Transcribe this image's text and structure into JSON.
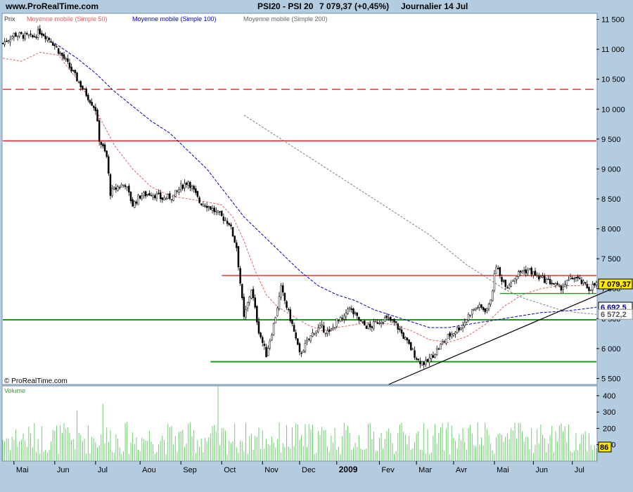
{
  "header": {
    "site": "www.ProRealTime.com",
    "instrument": "PSI20 - PSI 20",
    "last": "7 079,37 (+0,45%)",
    "period": "Journalier  14 Jul"
  },
  "legend": {
    "prix": "Prix",
    "ma50": "Moyenne mobile (Simple 50)",
    "ma100": "Moyenne mobile (Simple 100)",
    "ma200": "Moyenne mobile (Simple 200)",
    "copyright": "© ProRealTime.com",
    "volume": "Volume"
  },
  "colors": {
    "background": "#b4cce0",
    "panel": "#ffffff",
    "ma50": "#e06060",
    "ma100": "#0000c0",
    "ma200": "#808080",
    "volume": "#6fce6f",
    "resistance": "#e01010",
    "support": "#10a010",
    "tag_price": "#ffe800",
    "tag_blue": "#0000a0"
  },
  "chart_data": [
    {
      "type": "candlestick",
      "title": "PSI20 - PSI 20",
      "period": "Journalier",
      "y_ticks": [
        "11 500",
        "11 000",
        "10 500",
        "10 000",
        "9 500",
        "9 000",
        "8 500",
        "8 000",
        "7 500",
        "7 000",
        "6 500",
        "6 000",
        "5 500"
      ],
      "ylim": [
        5400,
        11600
      ],
      "x_ticks": [
        "Mai",
        "Jun",
        "Jul",
        "Aou",
        "Sep",
        "Oct",
        "Nov",
        "Dec",
        "2009",
        "Fev",
        "Mar",
        "Avr",
        "Mai",
        "Jun",
        "Jul"
      ],
      "x_tick_idx": [
        6,
        28,
        50,
        74,
        96,
        118,
        140,
        160,
        180,
        203,
        223,
        243,
        265,
        286,
        307
      ],
      "n_days": 320,
      "series": [
        {
          "name": "Prix",
          "key": "close",
          "points": [
            [
              0,
              11100
            ],
            [
              6,
              11250
            ],
            [
              16,
              11200
            ],
            [
              20,
              11300
            ],
            [
              26,
              11150
            ],
            [
              34,
              10800
            ],
            [
              40,
              10500
            ],
            [
              44,
              10300
            ],
            [
              50,
              10000
            ],
            [
              52,
              9500
            ],
            [
              56,
              9200
            ],
            [
              58,
              8600
            ],
            [
              62,
              8700
            ],
            [
              66,
              8750
            ],
            [
              70,
              8400
            ],
            [
              74,
              8550
            ],
            [
              80,
              8600
            ],
            [
              86,
              8500
            ],
            [
              92,
              8550
            ],
            [
              96,
              8700
            ],
            [
              100,
              8800
            ],
            [
              106,
              8450
            ],
            [
              110,
              8400
            ],
            [
              114,
              8300
            ],
            [
              118,
              8200
            ],
            [
              122,
              8100
            ],
            [
              126,
              7700
            ],
            [
              128,
              7100
            ],
            [
              130,
              6500
            ],
            [
              134,
              7000
            ],
            [
              138,
              6300
            ],
            [
              142,
              5900
            ],
            [
              146,
              6400
            ],
            [
              150,
              7000
            ],
            [
              152,
              6800
            ],
            [
              156,
              6400
            ],
            [
              160,
              5900
            ],
            [
              164,
              6100
            ],
            [
              168,
              6300
            ],
            [
              172,
              6350
            ],
            [
              176,
              6250
            ],
            [
              180,
              6450
            ],
            [
              184,
              6500
            ],
            [
              186,
              6700
            ],
            [
              190,
              6550
            ],
            [
              194,
              6400
            ],
            [
              198,
              6350
            ],
            [
              202,
              6450
            ],
            [
              206,
              6500
            ],
            [
              210,
              6450
            ],
            [
              212,
              6400
            ],
            [
              216,
              6200
            ],
            [
              220,
              6000
            ],
            [
              224,
              5800
            ],
            [
              228,
              5750
            ],
            [
              232,
              5900
            ],
            [
              236,
              6050
            ],
            [
              240,
              6200
            ],
            [
              244,
              6300
            ],
            [
              248,
              6400
            ],
            [
              252,
              6600
            ],
            [
              256,
              6700
            ],
            [
              260,
              6650
            ],
            [
              262,
              6700
            ],
            [
              264,
              7000
            ],
            [
              266,
              7400
            ],
            [
              268,
              7200
            ],
            [
              272,
              7050
            ],
            [
              276,
              7200
            ],
            [
              280,
              7300
            ],
            [
              284,
              7300
            ],
            [
              288,
              7200
            ],
            [
              292,
              7150
            ],
            [
              296,
              7100
            ],
            [
              300,
              7000
            ],
            [
              304,
              7100
            ],
            [
              308,
              7200
            ],
            [
              312,
              7100
            ],
            [
              316,
              7000
            ],
            [
              320,
              7079
            ]
          ]
        },
        {
          "name": "Moyenne mobile (Simple 50)",
          "key": "ma50",
          "points": [
            [
              0,
              10850
            ],
            [
              10,
              10800
            ],
            [
              20,
              10950
            ],
            [
              30,
              10900
            ],
            [
              40,
              10500
            ],
            [
              50,
              10000
            ],
            [
              60,
              9400
            ],
            [
              70,
              9000
            ],
            [
              80,
              8700
            ],
            [
              90,
              8550
            ],
            [
              100,
              8500
            ],
            [
              110,
              8450
            ],
            [
              118,
              8400
            ],
            [
              124,
              8200
            ],
            [
              130,
              7800
            ],
            [
              136,
              7300
            ],
            [
              142,
              6900
            ],
            [
              148,
              6700
            ],
            [
              156,
              6550
            ],
            [
              164,
              6400
            ],
            [
              172,
              6300
            ],
            [
              180,
              6350
            ],
            [
              190,
              6400
            ],
            [
              200,
              6450
            ],
            [
              210,
              6400
            ],
            [
              220,
              6300
            ],
            [
              230,
              6150
            ],
            [
              240,
              6100
            ],
            [
              250,
              6200
            ],
            [
              260,
              6400
            ],
            [
              270,
              6700
            ],
            [
              280,
              6900
            ],
            [
              290,
              7000
            ],
            [
              300,
              7050
            ],
            [
              310,
              7050
            ],
            [
              320,
              7080
            ]
          ]
        },
        {
          "name": "Moyenne mobile (Simple 100)",
          "key": "ma100",
          "points": [
            [
              28,
              11100
            ],
            [
              40,
              10850
            ],
            [
              50,
              10600
            ],
            [
              60,
              10300
            ],
            [
              70,
              10050
            ],
            [
              80,
              9800
            ],
            [
              90,
              9600
            ],
            [
              100,
              9300
            ],
            [
              110,
              9000
            ],
            [
              120,
              8600
            ],
            [
              130,
              8200
            ],
            [
              140,
              7900
            ],
            [
              150,
              7600
            ],
            [
              160,
              7300
            ],
            [
              170,
              7050
            ],
            [
              180,
              6900
            ],
            [
              190,
              6800
            ],
            [
              200,
              6650
            ],
            [
              210,
              6550
            ],
            [
              220,
              6450
            ],
            [
              230,
              6350
            ],
            [
              240,
              6350
            ],
            [
              250,
              6400
            ],
            [
              260,
              6450
            ],
            [
              270,
              6500
            ],
            [
              280,
              6550
            ],
            [
              290,
              6600
            ],
            [
              300,
              6620
            ],
            [
              310,
              6650
            ],
            [
              320,
              6690
            ]
          ]
        },
        {
          "name": "Moyenne mobile (Simple 200)",
          "key": "ma200",
          "points": [
            [
              130,
              9900
            ],
            [
              140,
              9700
            ],
            [
              150,
              9500
            ],
            [
              160,
              9300
            ],
            [
              170,
              9100
            ],
            [
              180,
              8900
            ],
            [
              190,
              8700
            ],
            [
              200,
              8500
            ],
            [
              210,
              8300
            ],
            [
              220,
              8100
            ],
            [
              230,
              7900
            ],
            [
              240,
              7650
            ],
            [
              250,
              7400
            ],
            [
              260,
              7200
            ],
            [
              270,
              7000
            ],
            [
              280,
              6850
            ],
            [
              290,
              6750
            ],
            [
              300,
              6650
            ],
            [
              310,
              6600
            ],
            [
              320,
              6572
            ]
          ]
        }
      ],
      "hlines": [
        {
          "value": 10330,
          "color": "#e01010",
          "style": "dashed",
          "from": 0
        },
        {
          "value": 9470,
          "color": "#e01010",
          "style": "solid",
          "from": 0
        },
        {
          "value": 7220,
          "color": "#e01010",
          "style": "solid",
          "from": 118
        },
        {
          "value": 6920,
          "color": "#10a010",
          "style": "solid",
          "from": 268
        },
        {
          "value": 6480,
          "color": "#10a010",
          "style": "solid",
          "from": 0,
          "width": 2
        },
        {
          "value": 5780,
          "color": "#10a010",
          "style": "solid",
          "from": 112,
          "width": 2
        }
      ],
      "trendline": [
        [
          208,
          5400
        ],
        [
          330,
          7020
        ]
      ],
      "price_tags": [
        {
          "label": "7 079,37",
          "value": 7079,
          "kind": "yellow"
        },
        {
          "label": "6 692,5",
          "value": 6692,
          "kind": "blue"
        },
        {
          "label": "6 572,2",
          "value": 6572,
          "kind": "gray"
        }
      ]
    },
    {
      "type": "bar",
      "title": "Volume",
      "y_ticks": [
        "400",
        "300",
        "200",
        "100"
      ],
      "ylim": [
        0,
        460
      ],
      "last_tag": "86",
      "spikes": [
        [
          116,
          480
        ],
        [
          54,
          350
        ],
        [
          40,
          310
        ]
      ]
    }
  ]
}
